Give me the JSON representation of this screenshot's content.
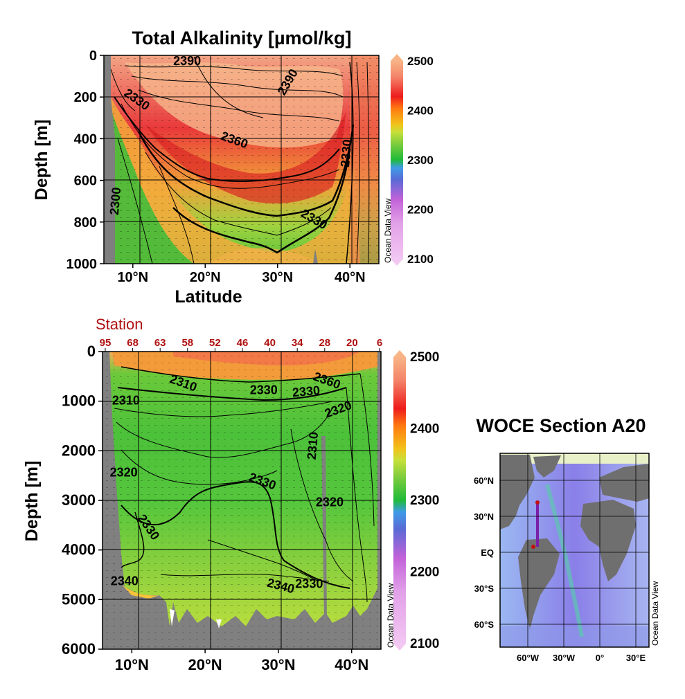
{
  "chart_data": [
    {
      "type": "heatmap",
      "title": "Total Alkalinity [µmol/kg]",
      "xlabel": "Latitude",
      "ylabel": "Depth [m]",
      "xlim": [
        6,
        44
      ],
      "ylim": [
        1000,
        0
      ],
      "x_ticks": [
        10,
        20,
        30,
        40
      ],
      "x_tick_labels": [
        "10°N",
        "20°N",
        "30°N",
        "40°N"
      ],
      "y_ticks": [
        0,
        200,
        400,
        600,
        800,
        1000
      ],
      "colorbar": {
        "min": 2100,
        "max": 2500,
        "ticks": [
          2100,
          2200,
          2300,
          2400,
          2500
        ]
      },
      "watermark": "Ocean Data View",
      "contour_labels": [
        {
          "text": "2390",
          "x": 17.5,
          "y": 30,
          "angle": 0
        },
        {
          "text": "2390",
          "x": 31.5,
          "y": 130,
          "angle": -60
        },
        {
          "text": "2330",
          "x": 10.5,
          "y": 215,
          "angle": 35
        },
        {
          "text": "2360",
          "x": 24,
          "y": 410,
          "angle": 20
        },
        {
          "text": "2330",
          "x": 35,
          "y": 790,
          "angle": 30
        },
        {
          "text": "2330",
          "x": 39.6,
          "y": 470,
          "angle": -85
        },
        {
          "text": "2300",
          "x": 7.7,
          "y": 700,
          "angle": -85
        }
      ]
    },
    {
      "type": "heatmap",
      "xlabel": "",
      "ylabel": "Depth [m]",
      "xlim": [
        6,
        44
      ],
      "ylim": [
        6000,
        0
      ],
      "x_ticks": [
        10,
        20,
        30,
        40
      ],
      "x_tick_labels": [
        "10°N",
        "20°N",
        "30°N",
        "40°N"
      ],
      "y_ticks": [
        0,
        1000,
        2000,
        3000,
        4000,
        5000,
        6000
      ],
      "colorbar": {
        "min": 2100,
        "max": 2500,
        "ticks": [
          2100,
          2200,
          2300,
          2400,
          2500
        ]
      },
      "watermark": "Ocean Data View",
      "station_axis_title": "Station",
      "stations": [
        "95",
        "68",
        "63",
        "58",
        "52",
        "46",
        "40",
        "34",
        "28",
        "20",
        "6"
      ],
      "contour_labels": [
        {
          "text": "2310",
          "x": 17,
          "y": 650,
          "angle": 20
        },
        {
          "text": "2310",
          "x": 9.2,
          "y": 1000,
          "angle": 0
        },
        {
          "text": "2330",
          "x": 28,
          "y": 790,
          "angle": 0
        },
        {
          "text": "2330",
          "x": 33.8,
          "y": 820,
          "angle": -5
        },
        {
          "text": "2360",
          "x": 36.6,
          "y": 600,
          "angle": 20
        },
        {
          "text": "2320",
          "x": 38.2,
          "y": 1180,
          "angle": -20
        },
        {
          "text": "2310",
          "x": 34.8,
          "y": 1900,
          "angle": -85
        },
        {
          "text": "2330",
          "x": 27.8,
          "y": 2630,
          "angle": 20
        },
        {
          "text": "2320",
          "x": 8.9,
          "y": 2450,
          "angle": 0
        },
        {
          "text": "2320",
          "x": 37,
          "y": 3050,
          "angle": 0
        },
        {
          "text": "2330",
          "x": 12.2,
          "y": 3550,
          "angle": 55
        },
        {
          "text": "2340",
          "x": 9,
          "y": 4640,
          "angle": 0
        },
        {
          "text": "2340",
          "x": 30.3,
          "y": 4740,
          "angle": 15
        },
        {
          "text": "2330",
          "x": 34.2,
          "y": 4700,
          "angle": 0
        }
      ]
    }
  ],
  "map": {
    "title": "WOCE Section A20",
    "lat_labels": [
      "60°N",
      "30°N",
      "EQ",
      "30°S",
      "60°S"
    ],
    "lon_labels": [
      "60°W",
      "30°W",
      "0°",
      "30°E"
    ],
    "watermark": "Ocean Data View",
    "section_color": "#7a1fa8"
  }
}
